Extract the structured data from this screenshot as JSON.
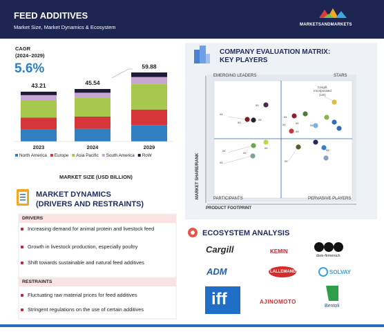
{
  "header": {
    "title": "FEED ADDITIVES",
    "subtitle": "Market Size, Market Dynamics & Ecosystem",
    "brand": "MARKETSANDMARKETS"
  },
  "chart_data": {
    "type": "bar",
    "stacked": true,
    "cagr_label": "CAGR",
    "cagr_period": "(2024–2029)",
    "cagr": {
      "value": 5.6,
      "label": "5.6%"
    },
    "categories": [
      "2023",
      "2024",
      "2029"
    ],
    "totals": [
      43.21,
      45.54,
      59.88
    ],
    "series": [
      {
        "name": "North America",
        "color": "#2f7fc1",
        "values": [
          10.4,
          11.0,
          14.2
        ]
      },
      {
        "name": "Europe",
        "color": "#d6353a",
        "values": [
          10.3,
          10.6,
          13.5
        ]
      },
      {
        "name": "Asia Pacific",
        "color": "#a6c84c",
        "values": [
          15.2,
          16.2,
          22.1
        ]
      },
      {
        "name": "South America",
        "color": "#c9a5d4",
        "values": [
          4.3,
          4.5,
          6.1
        ]
      },
      {
        "name": "RoW",
        "color": "#1e1b3a",
        "values": [
          3.01,
          3.24,
          3.98
        ]
      }
    ],
    "xlabel": "MARKET SIZE (USD BILLION)"
  },
  "dynamics": {
    "title": "MARKET DYNAMICS",
    "subtitle": "(DRIVERS AND RESTRAINTS)",
    "drivers_heading": "DRIVERS",
    "drivers": [
      "Increasing demand for animal protein and livestock feed",
      "Growth in livestock production, especially poultry",
      "Shift towards sustainable and natural feed additives"
    ],
    "restraints_heading": "RESTRAINTS",
    "restraints": [
      "Fluctuating raw material prices for feed additives",
      "Stringent regulations on the use of certain additives"
    ]
  },
  "matrix": {
    "title": "COMPANY EVALUATION MATRIX:",
    "subtitle": "KEY PLAYERS",
    "quadrants": [
      "EMERGING LEADERS",
      "STARS",
      "PARTICIPANTS",
      "PERVASIVE PLAYERS"
    ],
    "y_label": "MARKET SHARE/RANK",
    "x_label": "PRODUCT FOOTPRINT",
    "company_labels": [
      "Cargill, Incorporated (US)",
      "xx",
      "xx",
      "xx",
      "xx",
      "xx",
      "xx",
      "xx",
      "xx",
      "xx",
      "xx",
      "xx",
      "xx",
      "xx",
      "xx",
      "xx"
    ]
  },
  "ecosystem": {
    "title": "ECOSYSTEM ANALYSIS",
    "logos": [
      "Cargill",
      "KEMIN",
      "dsm-firmenich",
      "ADM",
      "LALLEMAND",
      "SOLVAY",
      "iff",
      "AJINOMOTO",
      "Bentoli"
    ]
  }
}
